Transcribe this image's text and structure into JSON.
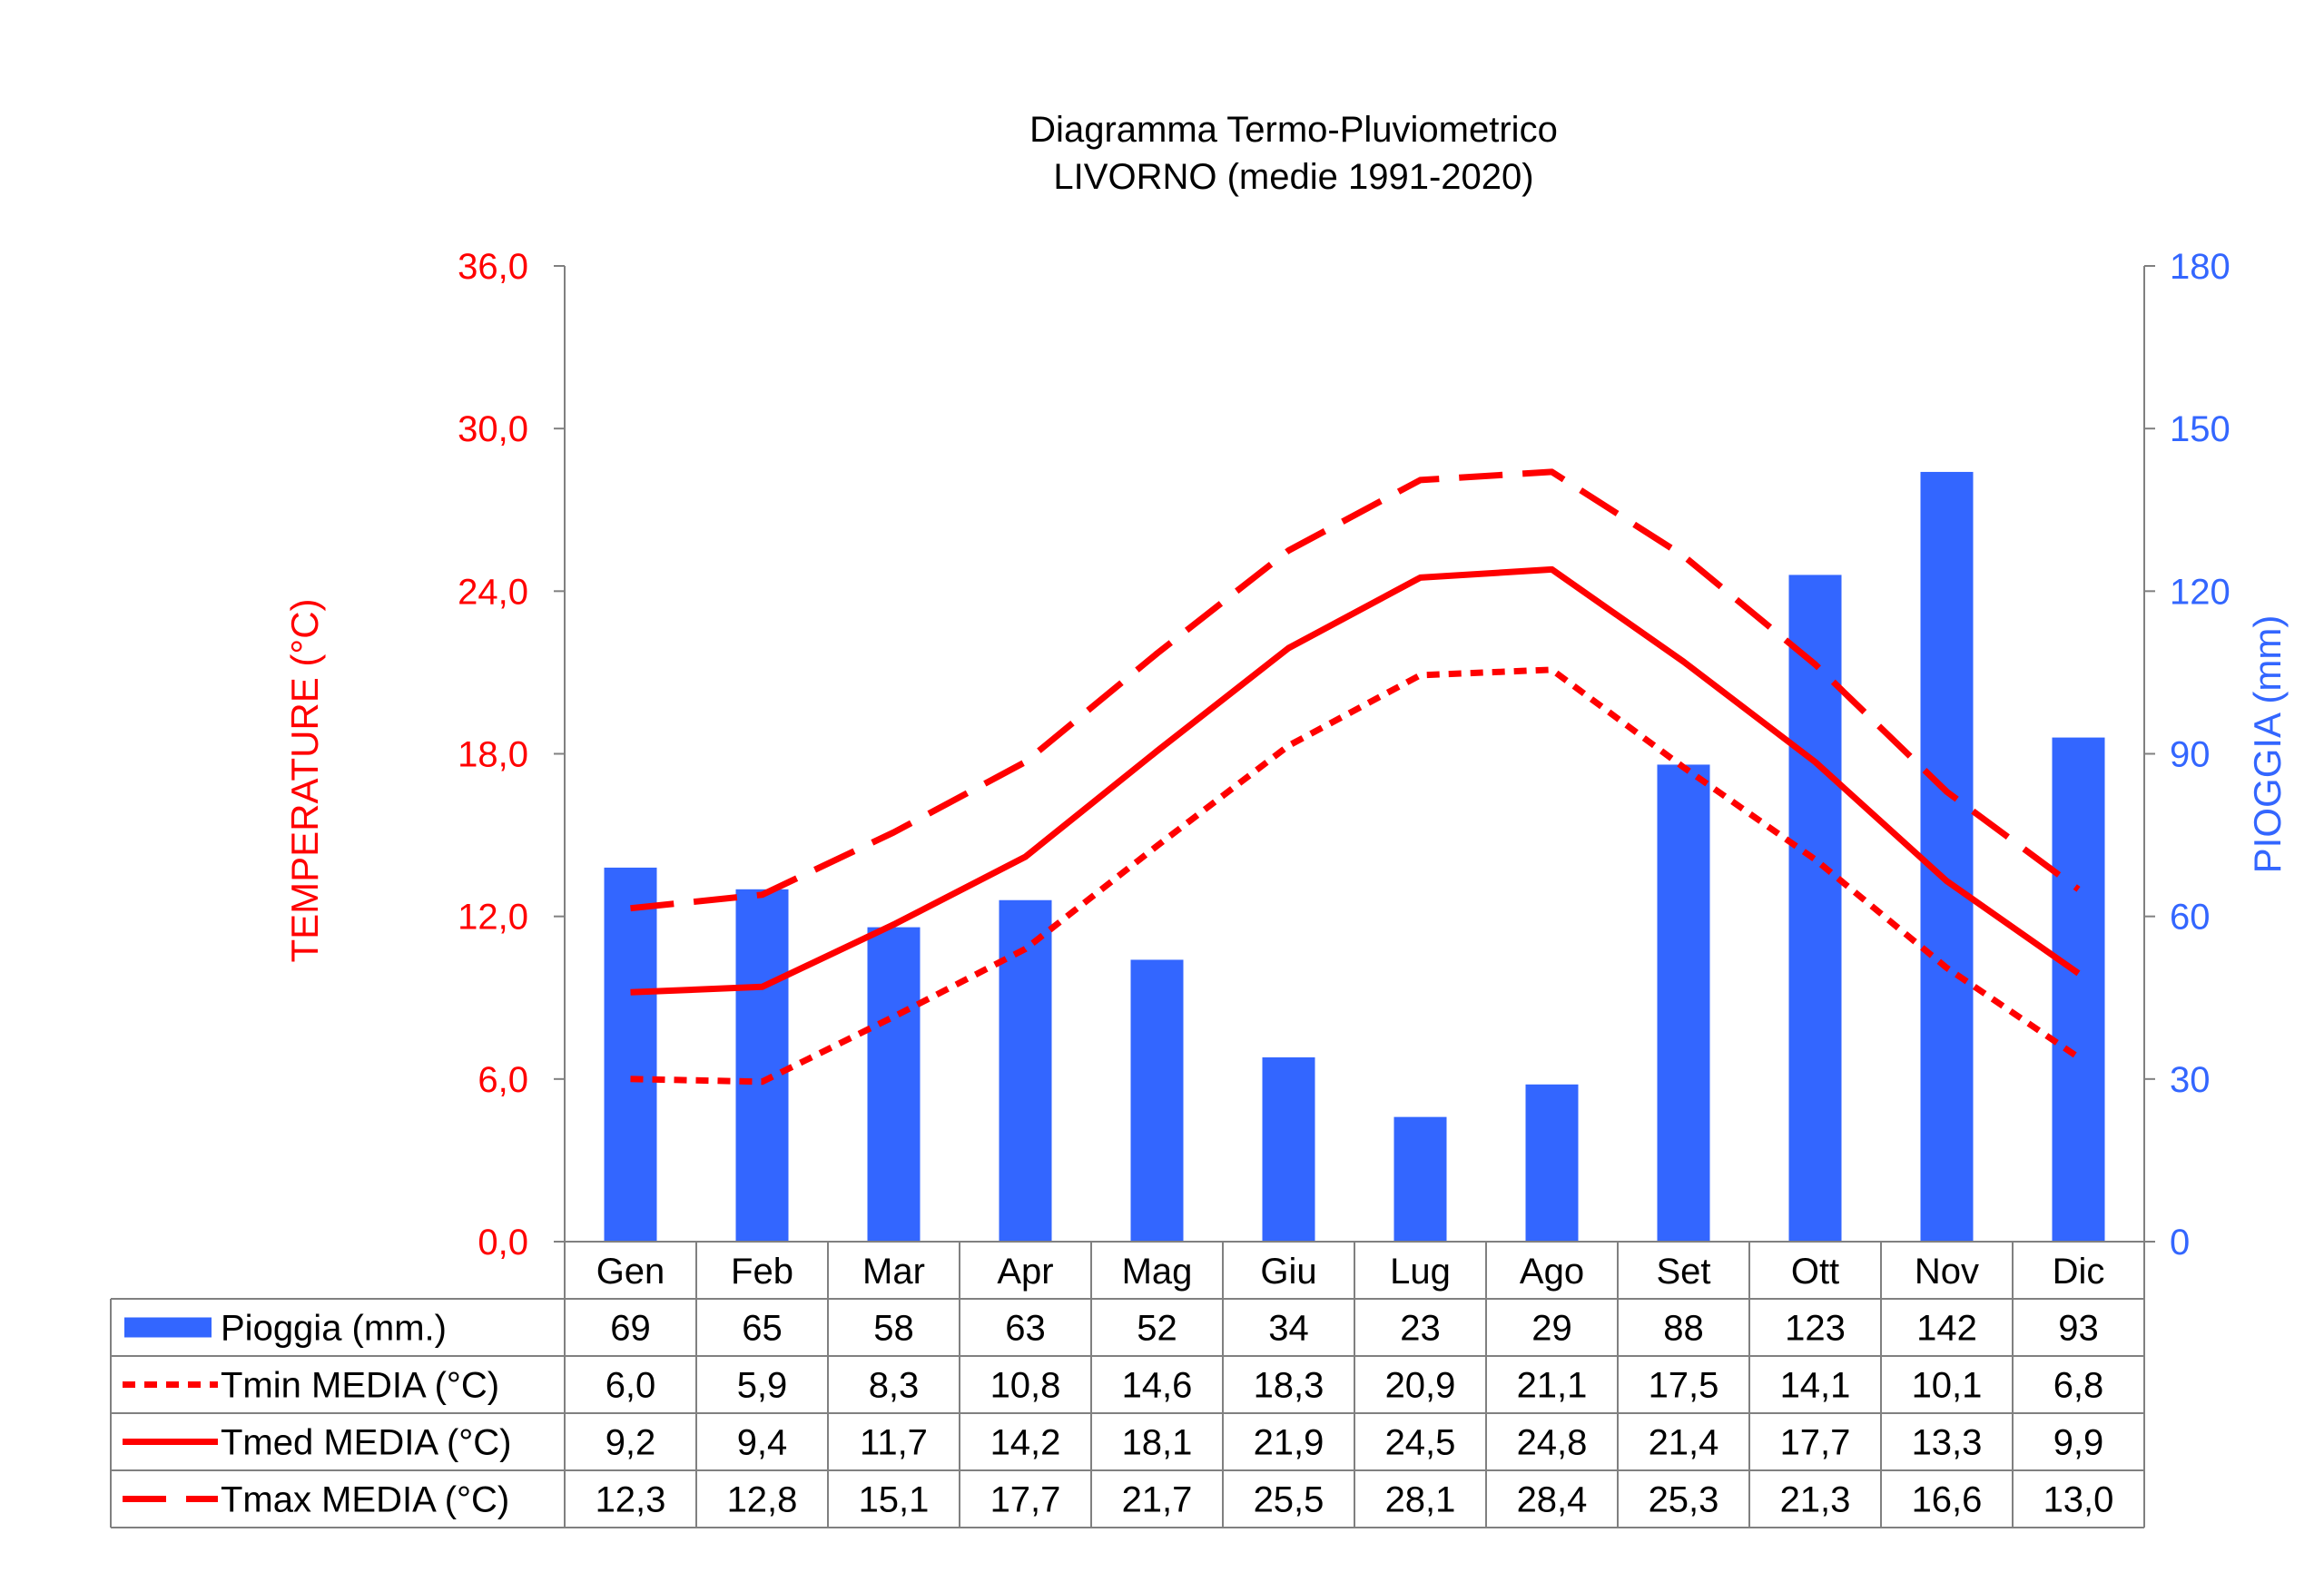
{
  "chart_data": {
    "type": "bar+line",
    "title": "Diagramma Termo-Pluviometrico",
    "subtitle": "LIVORNO (medie 1991-2020)",
    "categories": [
      "Gen",
      "Feb",
      "Mar",
      "Apr",
      "Mag",
      "Giu",
      "Lug",
      "Ago",
      "Set",
      "Ott",
      "Nov",
      "Dic"
    ],
    "y_left": {
      "label": "TEMPERATURE (°C)",
      "range": [
        0,
        36
      ],
      "ticks": [
        "0,0",
        "6,0",
        "12,0",
        "18,0",
        "24,0",
        "30,0",
        "36,0"
      ],
      "tick_values": [
        0,
        6,
        12,
        18,
        24,
        30,
        36
      ],
      "color": "#ff0000"
    },
    "y_right": {
      "label": "PIOGGIA (mm)",
      "range": [
        0,
        180
      ],
      "ticks": [
        "0",
        "30",
        "60",
        "90",
        "120",
        "150",
        "180"
      ],
      "tick_values": [
        0,
        30,
        60,
        90,
        120,
        150,
        180
      ],
      "color": "#3366ff"
    },
    "grid": false,
    "series": [
      {
        "name": "Pioggia (mm.)",
        "kind": "bar",
        "axis": "right",
        "color": "#3366ff",
        "values": [
          69,
          65,
          58,
          63,
          52,
          34,
          23,
          29,
          88,
          123,
          142,
          93
        ],
        "labels": [
          "69",
          "65",
          "58",
          "63",
          "52",
          "34",
          "23",
          "29",
          "88",
          "123",
          "142",
          "93"
        ]
      },
      {
        "name": "Tmin MEDIA (°C)",
        "kind": "line",
        "style": "short-dash",
        "axis": "left",
        "color": "#ff0000",
        "values": [
          6.0,
          5.9,
          8.3,
          10.8,
          14.6,
          18.3,
          20.9,
          21.1,
          17.5,
          14.1,
          10.1,
          6.8
        ],
        "labels": [
          "6,0",
          "5,9",
          "8,3",
          "10,8",
          "14,6",
          "18,3",
          "20,9",
          "21,1",
          "17,5",
          "14,1",
          "10,1",
          "6,8"
        ]
      },
      {
        "name": "Tmed MEDIA (°C)",
        "kind": "line",
        "style": "solid",
        "axis": "left",
        "color": "#ff0000",
        "values": [
          9.2,
          9.4,
          11.7,
          14.2,
          18.1,
          21.9,
          24.5,
          24.8,
          21.4,
          17.7,
          13.3,
          9.9
        ],
        "labels": [
          "9,2",
          "9,4",
          "11,7",
          "14,2",
          "18,1",
          "21,9",
          "24,5",
          "24,8",
          "21,4",
          "17,7",
          "13,3",
          "9,9"
        ]
      },
      {
        "name": "Tmax MEDIA (°C)",
        "kind": "line",
        "style": "long-dash",
        "axis": "left",
        "color": "#ff0000",
        "values": [
          12.3,
          12.8,
          15.1,
          17.7,
          21.7,
          25.5,
          28.1,
          28.4,
          25.3,
          21.3,
          16.6,
          13.0
        ],
        "labels": [
          "12,3",
          "12,8",
          "15,1",
          "17,7",
          "21,7",
          "25,5",
          "28,1",
          "28,4",
          "25,3",
          "21,3",
          "16,6",
          "13,0"
        ]
      }
    ],
    "legend": "data-table-below"
  }
}
